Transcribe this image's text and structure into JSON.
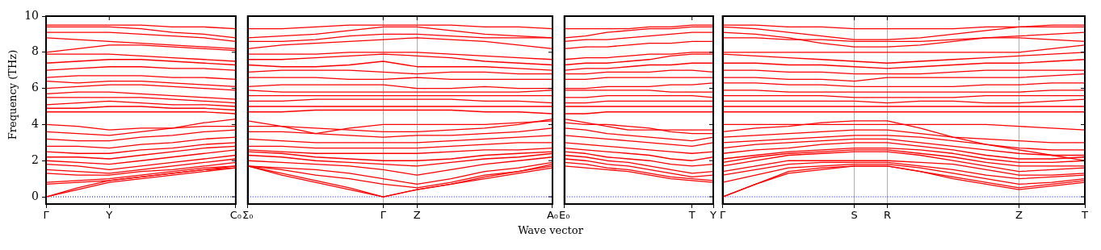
{
  "chart_data": [
    {
      "type": "line",
      "ylabel": "Frequency (THz)",
      "categories": [
        "Γ",
        null,
        "Y",
        null,
        null,
        null,
        "C₀"
      ],
      "ylim": [
        -0.4,
        10
      ],
      "yticks": [
        0,
        2,
        4,
        6,
        8,
        10
      ],
      "marker": "none",
      "line_style": "solid",
      "ref_lines": [
        {
          "axis": "y",
          "value": 0,
          "color": "#0000ff",
          "line_style": "dotted"
        }
      ],
      "series": [
        {
          "color": "#ff0000",
          "values": [
            9.5,
            9.5,
            9.5,
            9.5,
            9.4,
            9.4,
            9.3
          ]
        },
        {
          "color": "#ff0000",
          "values": [
            9.4,
            9.4,
            9.4,
            9.3,
            9.1,
            9.0,
            8.8
          ]
        },
        {
          "color": "#ff0000",
          "values": [
            9.1,
            9.1,
            9.1,
            9.0,
            8.9,
            8.8,
            8.6
          ]
        },
        {
          "color": "#ff0000",
          "values": [
            8.8,
            8.7,
            8.6,
            8.5,
            8.4,
            8.3,
            8.2
          ]
        },
        {
          "color": "#ff0000",
          "values": [
            8.0,
            8.2,
            8.4,
            8.4,
            8.3,
            8.2,
            8.1
          ]
        },
        {
          "color": "#ff0000",
          "values": [
            7.9,
            7.9,
            7.9,
            7.8,
            7.7,
            7.6,
            7.5
          ]
        },
        {
          "color": "#ff0000",
          "values": [
            7.4,
            7.5,
            7.6,
            7.6,
            7.5,
            7.4,
            7.3
          ]
        },
        {
          "color": "#ff0000",
          "values": [
            7.0,
            7.1,
            7.2,
            7.2,
            7.1,
            7.1,
            7.0
          ]
        },
        {
          "color": "#ff0000",
          "values": [
            6.6,
            6.7,
            6.7,
            6.7,
            6.6,
            6.6,
            6.5
          ]
        },
        {
          "color": "#ff0000",
          "values": [
            6.4,
            6.3,
            6.4,
            6.4,
            6.3,
            6.2,
            6.1
          ]
        },
        {
          "color": "#ff0000",
          "values": [
            6.0,
            6.1,
            6.2,
            6.2,
            6.1,
            6.0,
            5.9
          ]
        },
        {
          "color": "#ff0000",
          "values": [
            5.7,
            5.8,
            5.8,
            5.7,
            5.6,
            5.5,
            5.4
          ]
        },
        {
          "color": "#ff0000",
          "values": [
            5.5,
            5.5,
            5.5,
            5.5,
            5.4,
            5.3,
            5.2
          ]
        },
        {
          "color": "#ff0000",
          "values": [
            5.1,
            5.2,
            5.3,
            5.2,
            5.1,
            5.1,
            5.0
          ]
        },
        {
          "color": "#ff0000",
          "values": [
            4.9,
            4.9,
            5.0,
            5.0,
            4.9,
            4.9,
            4.8
          ]
        },
        {
          "color": "#ff0000",
          "values": [
            4.7,
            4.7,
            4.7,
            4.7,
            4.7,
            4.7,
            4.6
          ]
        },
        {
          "color": "#ff0000",
          "values": [
            4.0,
            3.9,
            3.7,
            3.8,
            3.8,
            3.9,
            3.9
          ]
        },
        {
          "color": "#ff0000",
          "values": [
            3.6,
            3.5,
            3.4,
            3.6,
            3.8,
            4.1,
            4.3
          ]
        },
        {
          "color": "#ff0000",
          "values": [
            3.2,
            3.1,
            3.1,
            3.3,
            3.4,
            3.6,
            3.7
          ]
        },
        {
          "color": "#ff0000",
          "values": [
            2.8,
            2.8,
            2.7,
            2.9,
            3.0,
            3.2,
            3.3
          ]
        },
        {
          "color": "#ff0000",
          "values": [
            2.5,
            2.4,
            2.4,
            2.6,
            2.7,
            2.9,
            3.0
          ]
        },
        {
          "color": "#ff0000",
          "values": [
            2.2,
            2.2,
            2.1,
            2.3,
            2.5,
            2.7,
            2.8
          ]
        },
        {
          "color": "#ff0000",
          "values": [
            2.0,
            1.9,
            1.8,
            2.0,
            2.2,
            2.4,
            2.6
          ]
        },
        {
          "color": "#ff0000",
          "values": [
            1.8,
            1.7,
            1.5,
            1.7,
            1.9,
            2.1,
            2.3
          ]
        },
        {
          "color": "#ff0000",
          "values": [
            1.5,
            1.4,
            1.3,
            1.5,
            1.7,
            1.9,
            2.1
          ]
        },
        {
          "color": "#ff0000",
          "values": [
            1.3,
            1.2,
            1.2,
            1.4,
            1.5,
            1.7,
            1.9
          ]
        },
        {
          "color": "#ff0000",
          "values": [
            0.8,
            0.9,
            1.0,
            1.2,
            1.4,
            1.6,
            1.7
          ]
        },
        {
          "color": "#ff0000",
          "values": [
            0.7,
            0.8,
            0.9,
            1.1,
            1.3,
            1.5,
            1.6
          ]
        },
        {
          "color": "#ff0000",
          "values": [
            0,
            0.5,
            0.9,
            1.1,
            1.3,
            1.5,
            1.7
          ]
        },
        {
          "color": "#ff0000",
          "values": [
            0,
            0.4,
            0.8,
            1.0,
            1.2,
            1.4,
            1.6
          ]
        }
      ]
    },
    {
      "type": "line",
      "xlabel": "Wave vector",
      "categories": [
        "Σ₀",
        null,
        null,
        null,
        "Γ",
        "Z",
        null,
        null,
        null,
        "A₀"
      ],
      "ylim": [
        -0.4,
        10
      ],
      "yticks": [
        0,
        2,
        4,
        6,
        8,
        10
      ],
      "tick_labels": "x",
      "grid": "x",
      "marker": "none",
      "line_style": "solid",
      "ref_lines": [
        {
          "axis": "y",
          "value": 0,
          "color": "#0000ff",
          "line_style": "dotted"
        }
      ],
      "series": [
        {
          "color": "#ff0000",
          "values": [
            9.3,
            9.3,
            9.4,
            9.5,
            9.5,
            9.5,
            9.5,
            9.4,
            9.4,
            9.3
          ]
        },
        {
          "color": "#ff0000",
          "values": [
            8.8,
            8.9,
            9.0,
            9.2,
            9.4,
            9.4,
            9.2,
            9.0,
            8.9,
            8.8
          ]
        },
        {
          "color": "#ff0000",
          "values": [
            8.6,
            8.6,
            8.7,
            8.9,
            9.0,
            9.0,
            8.9,
            8.8,
            8.8,
            8.8
          ]
        },
        {
          "color": "#ff0000",
          "values": [
            8.2,
            8.4,
            8.5,
            8.6,
            8.7,
            8.8,
            8.7,
            8.6,
            8.4,
            8.2
          ]
        },
        {
          "color": "#ff0000",
          "values": [
            7.9,
            7.9,
            7.9,
            8.0,
            8.0,
            8.0,
            7.9,
            7.8,
            7.7,
            7.6
          ]
        },
        {
          "color": "#ff0000",
          "values": [
            7.6,
            7.6,
            7.7,
            7.8,
            7.9,
            7.8,
            7.7,
            7.5,
            7.4,
            7.3
          ]
        },
        {
          "color": "#ff0000",
          "values": [
            7.3,
            7.2,
            7.2,
            7.3,
            7.5,
            7.2,
            7.2,
            7.2,
            7.1,
            7.0
          ]
        },
        {
          "color": "#ff0000",
          "values": [
            6.9,
            7.0,
            7.0,
            7.0,
            6.9,
            6.8,
            6.9,
            6.9,
            6.8,
            6.8
          ]
        },
        {
          "color": "#ff0000",
          "values": [
            6.6,
            6.6,
            6.6,
            6.5,
            6.5,
            6.6,
            6.5,
            6.5,
            6.5,
            6.5
          ]
        },
        {
          "color": "#ff0000",
          "values": [
            6.1,
            6.2,
            6.2,
            6.2,
            6.2,
            6.0,
            6.0,
            6.1,
            6.0,
            6.0
          ]
        },
        {
          "color": "#ff0000",
          "values": [
            5.9,
            5.8,
            5.8,
            5.8,
            5.8,
            5.8,
            5.8,
            5.8,
            5.8,
            5.9
          ]
        },
        {
          "color": "#ff0000",
          "values": [
            5.6,
            5.6,
            5.6,
            5.6,
            5.6,
            5.6,
            5.6,
            5.6,
            5.6,
            5.6
          ]
        },
        {
          "color": "#ff0000",
          "values": [
            5.3,
            5.3,
            5.4,
            5.4,
            5.4,
            5.4,
            5.4,
            5.3,
            5.3,
            5.2
          ]
        },
        {
          "color": "#ff0000",
          "values": [
            5.0,
            5.0,
            5.0,
            5.0,
            5.0,
            5.0,
            5.0,
            5.0,
            5.0,
            5.0
          ]
        },
        {
          "color": "#ff0000",
          "values": [
            4.7,
            4.7,
            4.8,
            4.8,
            4.8,
            4.8,
            4.8,
            4.7,
            4.7,
            4.6
          ]
        },
        {
          "color": "#ff0000",
          "values": [
            4.2,
            3.9,
            3.5,
            3.8,
            4.0,
            4.0,
            4.0,
            4.0,
            4.1,
            4.2
          ]
        },
        {
          "color": "#ff0000",
          "values": [
            3.9,
            3.9,
            3.8,
            3.7,
            3.6,
            3.6,
            3.7,
            3.8,
            4.0,
            4.3
          ]
        },
        {
          "color": "#ff0000",
          "values": [
            3.6,
            3.6,
            3.5,
            3.4,
            3.3,
            3.4,
            3.4,
            3.5,
            3.6,
            3.8
          ]
        },
        {
          "color": "#ff0000",
          "values": [
            3.2,
            3.1,
            3.0,
            3.0,
            3.0,
            3.0,
            3.1,
            3.2,
            3.3,
            3.4
          ]
        },
        {
          "color": "#ff0000",
          "values": [
            2.8,
            2.8,
            2.7,
            2.7,
            2.7,
            2.7,
            2.8,
            2.9,
            3.0,
            3.0
          ]
        },
        {
          "color": "#ff0000",
          "values": [
            2.6,
            2.5,
            2.4,
            2.4,
            2.4,
            2.4,
            2.5,
            2.6,
            2.6,
            2.7
          ]
        },
        {
          "color": "#ff0000",
          "values": [
            2.5,
            2.4,
            2.2,
            2.1,
            2.0,
            2.0,
            2.1,
            2.3,
            2.4,
            2.5
          ]
        },
        {
          "color": "#ff0000",
          "values": [
            2.3,
            2.2,
            2.0,
            1.9,
            1.8,
            1.7,
            1.9,
            2.1,
            2.2,
            2.4
          ]
        },
        {
          "color": "#ff0000",
          "values": [
            2.0,
            1.9,
            1.8,
            1.7,
            1.5,
            1.2,
            1.5,
            1.8,
            2.0,
            2.2
          ]
        },
        {
          "color": "#ff0000",
          "values": [
            1.7,
            1.6,
            1.5,
            1.3,
            1.0,
            0.7,
            1.0,
            1.4,
            1.6,
            1.9
          ]
        },
        {
          "color": "#ff0000",
          "values": [
            1.7,
            1.5,
            1.2,
            1.0,
            0.7,
            0.5,
            0.8,
            1.2,
            1.4,
            1.7
          ]
        },
        {
          "color": "#ff0000",
          "values": [
            1.7,
            1.3,
            0.9,
            0.5,
            0,
            0.4,
            0.7,
            1.0,
            1.3,
            1.6
          ]
        },
        {
          "color": "#ff0000",
          "values": [
            1.7,
            1.2,
            0.8,
            0.4,
            0,
            0.4,
            0.7,
            1.1,
            1.4,
            1.8
          ]
        }
      ]
    },
    {
      "type": "line",
      "categories": [
        "E₀",
        null,
        null,
        null,
        null,
        null,
        "T",
        "Y"
      ],
      "ylim": [
        -0.4,
        10
      ],
      "yticks": [
        0,
        2,
        4,
        6,
        8,
        10
      ],
      "tick_labels": "x",
      "marker": "none",
      "line_style": "solid",
      "ref_lines": [
        {
          "axis": "y",
          "value": 0,
          "color": "#0000ff",
          "line_style": "dotted"
        }
      ],
      "series": [
        {
          "color": "#ff0000",
          "values": [
            9.3,
            9.3,
            9.3,
            9.3,
            9.4,
            9.4,
            9.5,
            9.5
          ]
        },
        {
          "color": "#ff0000",
          "values": [
            8.8,
            8.9,
            9.1,
            9.2,
            9.3,
            9.3,
            9.4,
            9.4
          ]
        },
        {
          "color": "#ff0000",
          "values": [
            8.6,
            8.7,
            8.7,
            8.8,
            8.9,
            9.0,
            9.1,
            9.1
          ]
        },
        {
          "color": "#ff0000",
          "values": [
            8.2,
            8.3,
            8.3,
            8.4,
            8.5,
            8.5,
            8.6,
            8.6
          ]
        },
        {
          "color": "#ff0000",
          "values": [
            7.6,
            7.7,
            7.7,
            7.8,
            7.9,
            7.9,
            8.0,
            8.0
          ]
        },
        {
          "color": "#ff0000",
          "values": [
            7.3,
            7.4,
            7.4,
            7.5,
            7.6,
            7.8,
            7.9,
            7.9
          ]
        },
        {
          "color": "#ff0000",
          "values": [
            7.0,
            7.1,
            7.1,
            7.2,
            7.3,
            7.3,
            7.4,
            7.4
          ]
        },
        {
          "color": "#ff0000",
          "values": [
            6.8,
            6.8,
            6.9,
            6.9,
            6.9,
            7.0,
            7.0,
            6.9
          ]
        },
        {
          "color": "#ff0000",
          "values": [
            6.5,
            6.5,
            6.6,
            6.6,
            6.6,
            6.6,
            6.6,
            6.6
          ]
        },
        {
          "color": "#ff0000",
          "values": [
            6.0,
            6.0,
            6.1,
            6.1,
            6.1,
            6.2,
            6.2,
            6.3
          ]
        },
        {
          "color": "#ff0000",
          "values": [
            5.9,
            5.9,
            5.9,
            5.9,
            5.9,
            5.8,
            5.8,
            5.8
          ]
        },
        {
          "color": "#ff0000",
          "values": [
            5.5,
            5.5,
            5.6,
            5.6,
            5.6,
            5.6,
            5.6,
            5.5
          ]
        },
        {
          "color": "#ff0000",
          "values": [
            5.2,
            5.2,
            5.3,
            5.3,
            5.3,
            5.3,
            5.3,
            5.3
          ]
        },
        {
          "color": "#ff0000",
          "values": [
            5.0,
            5.0,
            5.0,
            5.0,
            5.0,
            5.0,
            5.0,
            5.0
          ]
        },
        {
          "color": "#ff0000",
          "values": [
            4.6,
            4.6,
            4.7,
            4.7,
            4.7,
            4.7,
            4.7,
            4.7
          ]
        },
        {
          "color": "#ff0000",
          "values": [
            4.3,
            4.1,
            3.9,
            3.7,
            3.7,
            3.7,
            3.7,
            3.7
          ]
        },
        {
          "color": "#ff0000",
          "values": [
            4.1,
            4.0,
            4.0,
            3.9,
            3.8,
            3.6,
            3.5,
            3.5
          ]
        },
        {
          "color": "#ff0000",
          "values": [
            3.8,
            3.7,
            3.5,
            3.4,
            3.3,
            3.2,
            3.1,
            3.3
          ]
        },
        {
          "color": "#ff0000",
          "values": [
            3.4,
            3.3,
            3.2,
            3.1,
            3.0,
            2.9,
            2.8,
            3.0
          ]
        },
        {
          "color": "#ff0000",
          "values": [
            3.0,
            2.9,
            2.8,
            2.7,
            2.6,
            2.5,
            2.4,
            2.5
          ]
        },
        {
          "color": "#ff0000",
          "values": [
            2.7,
            2.6,
            2.5,
            2.4,
            2.3,
            2.1,
            2.0,
            2.2
          ]
        },
        {
          "color": "#ff0000",
          "values": [
            2.5,
            2.4,
            2.2,
            2.1,
            2.0,
            1.8,
            1.7,
            1.8
          ]
        },
        {
          "color": "#ff0000",
          "values": [
            2.3,
            2.2,
            2.0,
            1.9,
            1.7,
            1.5,
            1.3,
            1.4
          ]
        },
        {
          "color": "#ff0000",
          "values": [
            2.1,
            2.0,
            1.8,
            1.7,
            1.5,
            1.3,
            1.1,
            1.2
          ]
        },
        {
          "color": "#ff0000",
          "values": [
            1.9,
            1.8,
            1.6,
            1.5,
            1.3,
            1.1,
            1.0,
            0.9
          ]
        },
        {
          "color": "#ff0000",
          "values": [
            1.7,
            1.6,
            1.5,
            1.4,
            1.2,
            1.0,
            0.9,
            0.8
          ]
        }
      ]
    },
    {
      "type": "line",
      "categories": [
        "Γ",
        null,
        null,
        null,
        "S",
        "R",
        null,
        null,
        null,
        "Z",
        null,
        "T"
      ],
      "ylim": [
        -0.4,
        10
      ],
      "yticks": [
        0,
        2,
        4,
        6,
        8,
        10
      ],
      "tick_labels": "x",
      "grid": "x",
      "marker": "none",
      "line_style": "solid",
      "ref_lines": [
        {
          "axis": "y",
          "value": 0,
          "color": "#0000ff",
          "line_style": "dotted"
        }
      ],
      "series": [
        {
          "color": "#ff0000",
          "values": [
            9.5,
            9.5,
            9.4,
            9.4,
            9.3,
            9.3,
            9.3,
            9.3,
            9.4,
            9.4,
            9.5,
            9.5
          ]
        },
        {
          "color": "#ff0000",
          "values": [
            9.4,
            9.3,
            9.1,
            8.9,
            8.7,
            8.7,
            8.8,
            9.0,
            9.2,
            9.4,
            9.4,
            9.4
          ]
        },
        {
          "color": "#ff0000",
          "values": [
            9.1,
            9.0,
            8.8,
            8.5,
            8.3,
            8.3,
            8.4,
            8.6,
            8.8,
            8.9,
            9.0,
            9.1
          ]
        },
        {
          "color": "#ff0000",
          "values": [
            8.8,
            8.8,
            8.7,
            8.7,
            8.6,
            8.6,
            8.6,
            8.7,
            8.8,
            8.8,
            8.7,
            8.6
          ]
        },
        {
          "color": "#ff0000",
          "values": [
            8.0,
            8.0,
            8.0,
            8.0,
            8.0,
            8.0,
            8.0,
            8.0,
            8.0,
            8.0,
            8.2,
            8.4
          ]
        },
        {
          "color": "#ff0000",
          "values": [
            7.9,
            7.8,
            7.7,
            7.6,
            7.5,
            7.4,
            7.5,
            7.6,
            7.7,
            7.8,
            7.9,
            8.0
          ]
        },
        {
          "color": "#ff0000",
          "values": [
            7.4,
            7.4,
            7.3,
            7.3,
            7.2,
            7.1,
            7.2,
            7.3,
            7.4,
            7.4,
            7.5,
            7.6
          ]
        },
        {
          "color": "#ff0000",
          "values": [
            7.0,
            7.0,
            6.9,
            6.9,
            6.8,
            6.8,
            6.8,
            6.9,
            7.0,
            7.0,
            7.0,
            7.0
          ]
        },
        {
          "color": "#ff0000",
          "values": [
            6.6,
            6.6,
            6.5,
            6.5,
            6.4,
            6.6,
            6.6,
            6.6,
            6.6,
            6.6,
            6.7,
            6.8
          ]
        },
        {
          "color": "#ff0000",
          "values": [
            6.3,
            6.3,
            6.2,
            6.2,
            6.1,
            6.1,
            6.1,
            6.1,
            6.2,
            6.2,
            6.3,
            6.3
          ]
        },
        {
          "color": "#ff0000",
          "values": [
            5.9,
            5.9,
            5.8,
            5.8,
            5.8,
            5.8,
            5.8,
            5.8,
            5.8,
            5.8,
            5.9,
            5.9
          ]
        },
        {
          "color": "#ff0000",
          "values": [
            5.6,
            5.6,
            5.6,
            5.6,
            5.5,
            5.5,
            5.5,
            5.5,
            5.6,
            5.6,
            5.6,
            5.6
          ]
        },
        {
          "color": "#ff0000",
          "values": [
            5.3,
            5.3,
            5.3,
            5.3,
            5.3,
            5.2,
            5.3,
            5.3,
            5.2,
            5.2,
            5.3,
            5.4
          ]
        },
        {
          "color": "#ff0000",
          "values": [
            5.0,
            5.0,
            5.0,
            5.0,
            5.0,
            5.0,
            5.0,
            5.0,
            5.0,
            5.0,
            5.0,
            5.0
          ]
        },
        {
          "color": "#ff0000",
          "values": [
            4.7,
            4.7,
            4.7,
            4.7,
            4.7,
            4.7,
            4.7,
            4.7,
            4.7,
            4.7,
            4.7,
            4.7
          ]
        },
        {
          "color": "#ff0000",
          "values": [
            4.0,
            4.0,
            4.0,
            4.0,
            4.0,
            4.0,
            4.0,
            4.0,
            4.0,
            3.9,
            3.8,
            3.7
          ]
        },
        {
          "color": "#ff0000",
          "values": [
            3.6,
            3.8,
            3.9,
            4.1,
            4.2,
            4.2,
            3.8,
            3.3,
            2.9,
            2.6,
            2.3,
            2.0
          ]
        },
        {
          "color": "#ff0000",
          "values": [
            3.3,
            3.4,
            3.5,
            3.6,
            3.7,
            3.7,
            3.5,
            3.3,
            3.2,
            3.1,
            3.0,
            3.0
          ]
        },
        {
          "color": "#ff0000",
          "values": [
            3.0,
            3.1,
            3.2,
            3.3,
            3.4,
            3.4,
            3.3,
            3.1,
            2.9,
            2.7,
            2.6,
            2.6
          ]
        },
        {
          "color": "#ff0000",
          "values": [
            2.7,
            2.9,
            3.0,
            3.1,
            3.2,
            3.2,
            3.0,
            2.8,
            2.6,
            2.4,
            2.3,
            2.3
          ]
        },
        {
          "color": "#ff0000",
          "values": [
            2.4,
            2.6,
            2.7,
            2.9,
            3.0,
            3.0,
            2.8,
            2.6,
            2.3,
            2.1,
            2.1,
            2.2
          ]
        },
        {
          "color": "#ff0000",
          "values": [
            2.1,
            2.3,
            2.5,
            2.6,
            2.7,
            2.7,
            2.6,
            2.4,
            2.1,
            1.9,
            1.9,
            2.0
          ]
        },
        {
          "color": "#ff0000",
          "values": [
            1.9,
            2.2,
            2.4,
            2.5,
            2.6,
            2.6,
            2.4,
            2.2,
            1.9,
            1.7,
            1.7,
            1.7
          ]
        },
        {
          "color": "#ff0000",
          "values": [
            1.7,
            2.0,
            2.3,
            2.4,
            2.5,
            2.5,
            2.3,
            2.0,
            1.7,
            1.4,
            1.5,
            1.6
          ]
        },
        {
          "color": "#ff0000",
          "values": [
            1.4,
            1.7,
            2.0,
            2.0,
            2.0,
            2.0,
            1.9,
            1.8,
            1.5,
            1.2,
            1.2,
            1.3
          ]
        },
        {
          "color": "#ff0000",
          "values": [
            1.2,
            1.5,
            1.8,
            1.9,
            1.9,
            1.9,
            1.7,
            1.5,
            1.2,
            1.0,
            1.1,
            1.2
          ]
        },
        {
          "color": "#ff0000",
          "values": [
            0.8,
            1.2,
            1.6,
            1.7,
            1.8,
            1.8,
            1.6,
            1.3,
            1.0,
            0.7,
            0.8,
            1.0
          ]
        },
        {
          "color": "#ff0000",
          "values": [
            0,
            0.7,
            1.4,
            1.6,
            1.7,
            1.7,
            1.4,
            1.1,
            0.8,
            0.5,
            0.7,
            0.9
          ]
        },
        {
          "color": "#ff0000",
          "values": [
            0,
            0.7,
            1.3,
            1.5,
            1.7,
            1.7,
            1.4,
            1.0,
            0.7,
            0.4,
            0.6,
            0.8
          ]
        }
      ]
    }
  ]
}
